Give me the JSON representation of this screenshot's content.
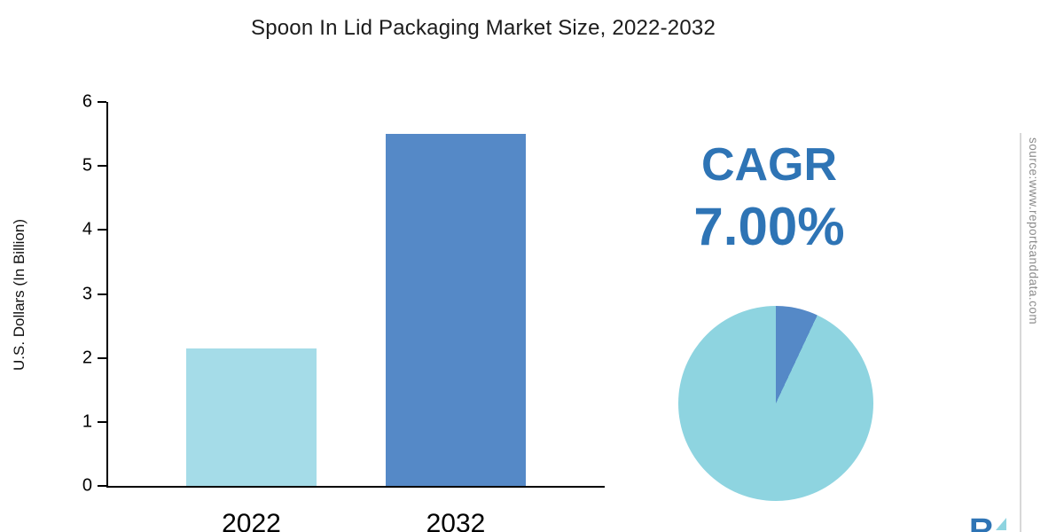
{
  "title": "Spoon In Lid Packaging Market Size, 2022-2032",
  "cagr": {
    "label": "CAGR",
    "value": "7.00%"
  },
  "source": "source:www.reportsanddata.com",
  "logo_text": "R",
  "colors": {
    "accent_blue": "#2e74b5",
    "bar_2022": "#a5dce8",
    "bar_2032": "#5589c7",
    "pie_main": "#8ed4e0",
    "pie_slice": "#5589c7"
  },
  "chart_data": [
    {
      "type": "bar",
      "title": "Spoon In Lid Packaging Market Size, 2022-2032",
      "categories": [
        "2022",
        "2032"
      ],
      "values": [
        2.15,
        5.5
      ],
      "xlabel": "",
      "ylabel": "U.S. Dollars (In Billion)",
      "ylim": [
        0,
        6
      ],
      "yticks": [
        0,
        1,
        2,
        3,
        4,
        5,
        6
      ],
      "grid": false,
      "legend": "none"
    },
    {
      "type": "pie",
      "title": "CAGR 7.00%",
      "slices": [
        {
          "label": "cagr-slice",
          "value": 7
        },
        {
          "label": "remainder",
          "value": 93
        }
      ]
    }
  ]
}
